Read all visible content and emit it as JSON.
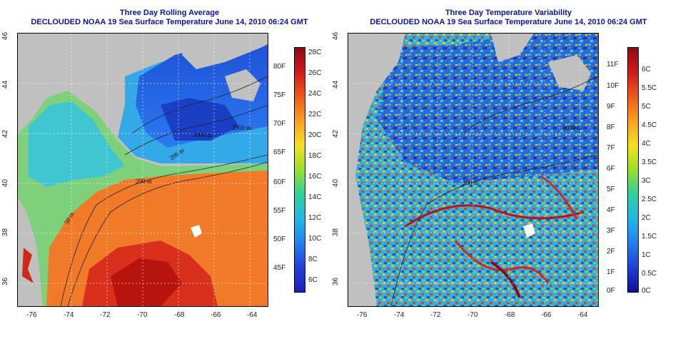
{
  "left": {
    "title_line1": "Three Day Rolling Average",
    "title_line2": "DECLOUDED NOAA 19 Sea Surface Temperature June 14, 2010 06:24 GMT",
    "colorbar_celsius": [
      "28C",
      "26C",
      "24C",
      "22C",
      "20C",
      "18C",
      "16C",
      "14C",
      "12C",
      "10C",
      "8C",
      "6C"
    ],
    "colorbar_fahrenheit": [
      "80F",
      "75F",
      "70F",
      "65F",
      "60F",
      "55F",
      "50F",
      "45F"
    ],
    "contour_labels": [
      "3000 m",
      "200 m",
      "50 m",
      "2000 m",
      "200 m"
    ]
  },
  "right": {
    "title_line1": "Three Day Temperature Variability",
    "title_line2": "DECLOUDED NOAA 19 Sea Surface Temperature June 14, 2010 06:24 GMT",
    "colorbar_celsius": [
      "6C",
      "5.5C",
      "5C",
      "4.5C",
      "4C",
      "3.5C",
      "3C",
      "2.5C",
      "2C",
      "1.5C",
      "1C",
      "0.5C",
      "0C"
    ],
    "colorbar_fahrenheit": [
      "11F",
      "10F",
      "9F",
      "8F",
      "7F",
      "6F",
      "5F",
      "4F",
      "3F",
      "2F",
      "1F",
      "0F"
    ],
    "contour_labels": [
      "200 m",
      "3000 m"
    ]
  },
  "axes": {
    "lon_ticks": [
      "-76",
      "-74",
      "-72",
      "-70",
      "-68",
      "-66",
      "-64"
    ],
    "lat_ticks": [
      "46",
      "44",
      "42",
      "40",
      "38",
      "36"
    ]
  },
  "colors": {
    "title": "#0a149e",
    "land": "#c0c0c0"
  }
}
